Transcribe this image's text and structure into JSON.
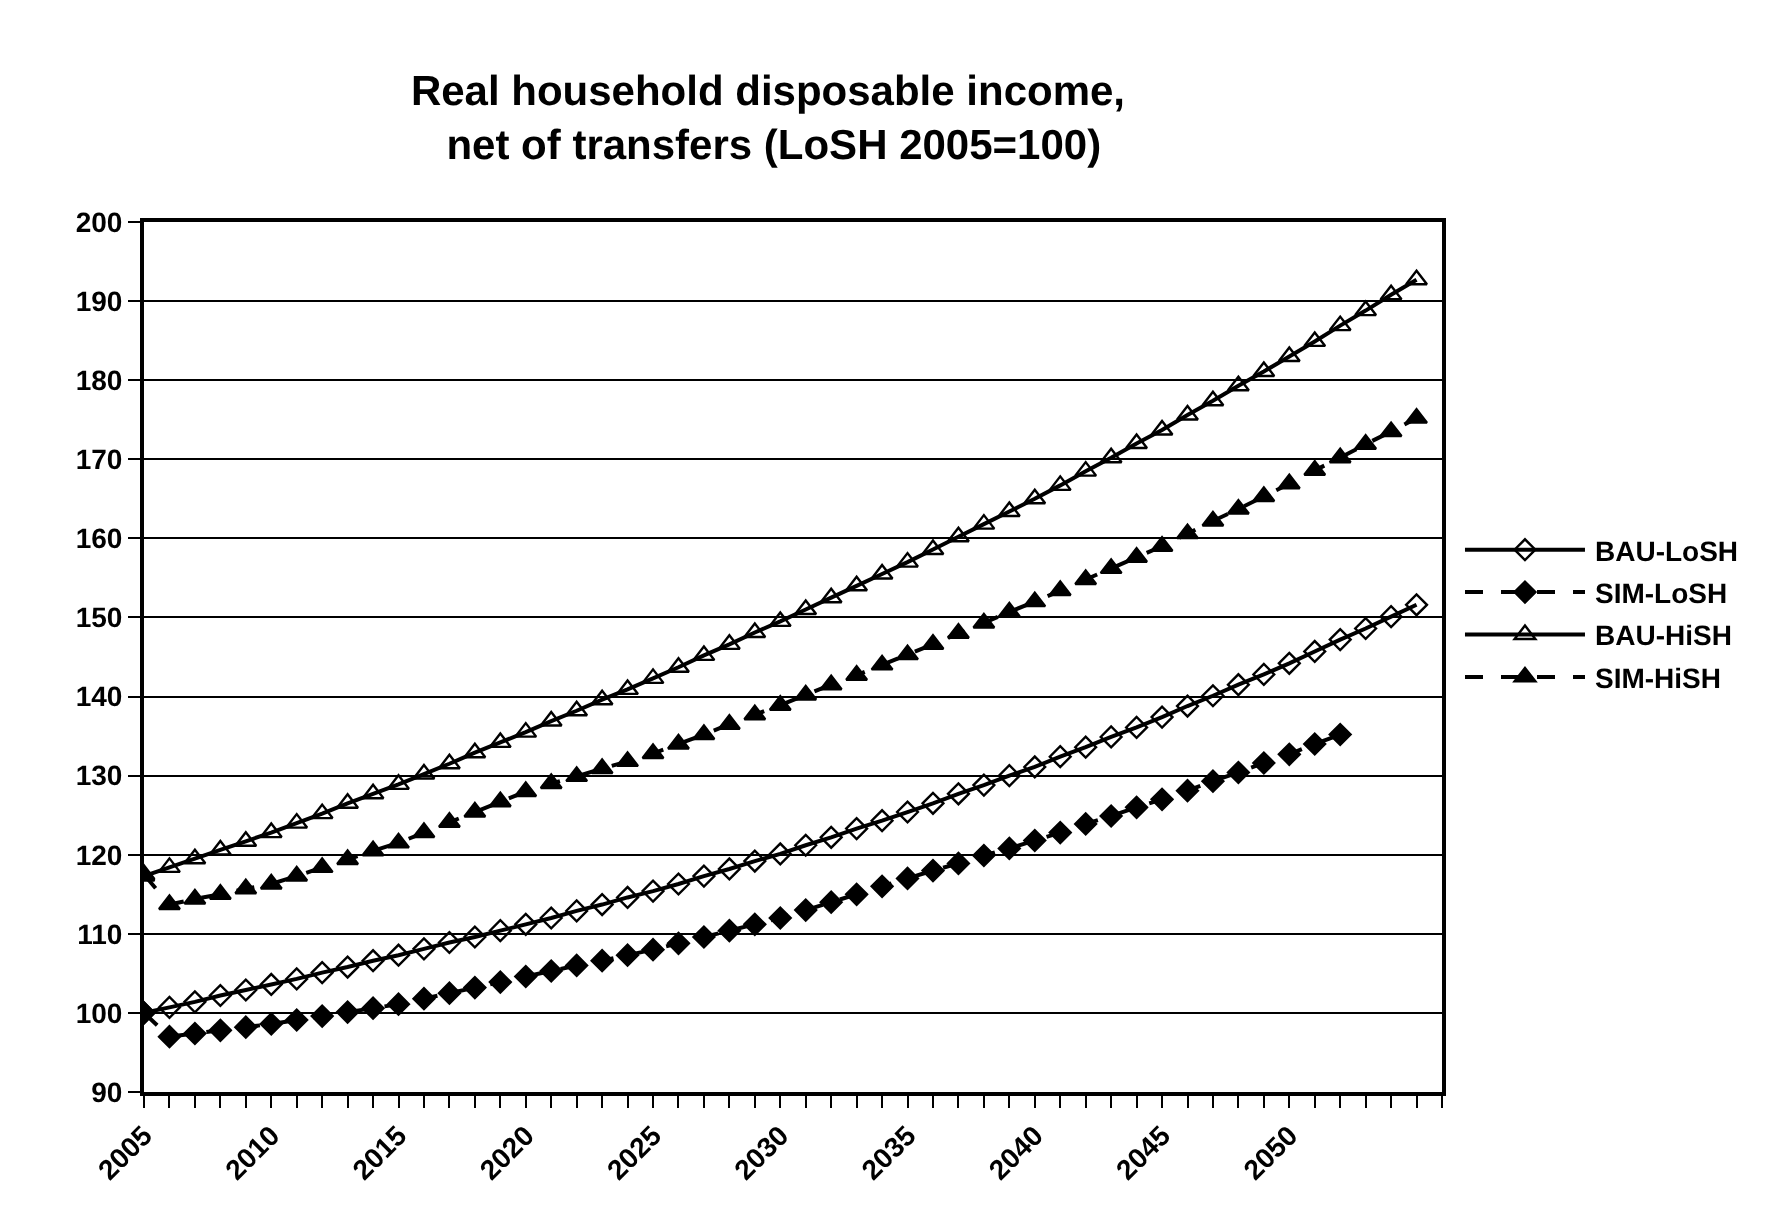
{
  "chart_data": {
    "type": "line",
    "title": "Real household disposable income,\n net of transfers (LoSH 2005=100)",
    "x": [
      2005,
      2006,
      2007,
      2008,
      2009,
      2010,
      2011,
      2012,
      2013,
      2014,
      2015,
      2016,
      2017,
      2018,
      2019,
      2020,
      2021,
      2022,
      2023,
      2024,
      2025,
      2026,
      2027,
      2028,
      2029,
      2030,
      2031,
      2032,
      2033,
      2034,
      2035,
      2036,
      2037,
      2038,
      2039,
      2040,
      2041,
      2042,
      2043,
      2044,
      2045,
      2046,
      2047,
      2048,
      2049,
      2050,
      2051,
      2052,
      2053,
      2054,
      2055
    ],
    "series": [
      {
        "name": "BAU-LoSH",
        "color": "#000000",
        "marker": "diamond",
        "line_style": "solid",
        "values": [
          100,
          100.7,
          101.4,
          102.2,
          102.9,
          103.6,
          104.3,
          105.1,
          105.8,
          106.6,
          107.3,
          108.1,
          108.9,
          109.6,
          110.4,
          111.2,
          112.0,
          112.9,
          113.7,
          114.6,
          115.4,
          116.3,
          117.3,
          118.2,
          119.2,
          120.1,
          121.2,
          122.2,
          123.3,
          124.3,
          125.4,
          126.5,
          127.7,
          128.8,
          130.0,
          131.1,
          132.4,
          133.6,
          134.9,
          136.1,
          137.4,
          138.8,
          140.1,
          141.5,
          142.8,
          144.2,
          145.7,
          147.2,
          148.6,
          150.1,
          151.6
        ]
      },
      {
        "name": "SIM-LoSH",
        "color": "#000000",
        "marker": "diamond",
        "line_style": "dashed",
        "values": [
          100,
          97.0,
          97.4,
          97.8,
          98.2,
          98.6,
          99.1,
          99.6,
          100.1,
          100.6,
          101.1,
          101.8,
          102.5,
          103.2,
          103.9,
          104.6,
          105.3,
          106.0,
          106.6,
          107.3,
          108.0,
          108.8,
          109.6,
          110.4,
          111.2,
          112.0,
          113.0,
          114.0,
          115.0,
          116.0,
          117.0,
          118.0,
          118.9,
          119.9,
          120.8,
          121.8,
          122.8,
          123.9,
          124.9,
          126.0,
          127.0,
          128.1,
          129.3,
          130.4,
          131.6,
          132.7,
          134.0,
          135.2,
          null,
          null,
          null
        ]
      },
      {
        "name": "BAU-HiSH",
        "color": "#000000",
        "marker": "triangle",
        "line_style": "solid",
        "values": [
          117.3,
          118.4,
          119.5,
          120.6,
          121.7,
          122.8,
          124.0,
          125.2,
          126.5,
          127.7,
          128.9,
          130.2,
          131.5,
          132.9,
          134.2,
          135.5,
          136.9,
          138.2,
          139.6,
          140.9,
          142.3,
          143.7,
          145.2,
          146.6,
          148.1,
          149.5,
          151.0,
          152.5,
          154.0,
          155.5,
          157.0,
          158.6,
          160.2,
          161.8,
          163.4,
          165.0,
          166.7,
          168.5,
          170.2,
          172.0,
          173.7,
          175.6,
          177.4,
          179.3,
          181.1,
          183.0,
          184.9,
          186.9,
          188.8,
          190.8,
          192.7
        ]
      },
      {
        "name": "SIM-HiSH",
        "color": "#000000",
        "marker": "triangle",
        "line_style": "dashed",
        "values": [
          117.5,
          113.7,
          114.4,
          115.0,
          115.7,
          116.3,
          117.3,
          118.4,
          119.4,
          120.5,
          121.5,
          122.8,
          124.1,
          125.4,
          126.7,
          128.0,
          129.0,
          129.9,
          130.9,
          131.8,
          132.8,
          134.0,
          135.2,
          136.5,
          137.7,
          138.9,
          140.2,
          141.5,
          142.7,
          144.0,
          145.3,
          146.6,
          148.0,
          149.3,
          150.7,
          152.0,
          153.4,
          154.8,
          156.2,
          157.6,
          159.0,
          160.6,
          162.2,
          163.7,
          165.3,
          166.9,
          168.6,
          170.2,
          171.9,
          173.5,
          175.2
        ]
      }
    ],
    "xlim": [
      2005,
      2056
    ],
    "xticks": [
      2005,
      {
        "value": 2006,
        "label": null
      },
      {
        "value": 2007,
        "label": null
      },
      {
        "value": 2008,
        "label": null
      },
      {
        "value": 2009,
        "label": null
      },
      2010,
      {
        "value": 2011,
        "label": null
      },
      {
        "value": 2012,
        "label": null
      },
      {
        "value": 2013,
        "label": null
      },
      {
        "value": 2014,
        "label": null
      },
      2015,
      {
        "value": 2016,
        "label": null
      },
      {
        "value": 2017,
        "label": null
      },
      {
        "value": 2018,
        "label": null
      },
      {
        "value": 2019,
        "label": null
      },
      2020,
      {
        "value": 2021,
        "label": null
      },
      {
        "value": 2022,
        "label": null
      },
      {
        "value": 2023,
        "label": null
      },
      {
        "value": 2024,
        "label": null
      },
      2025,
      {
        "value": 2026,
        "label": null
      },
      {
        "value": 2027,
        "label": null
      },
      {
        "value": 2028,
        "label": null
      },
      {
        "value": 2029,
        "label": null
      },
      2030,
      {
        "value": 2031,
        "label": null
      },
      {
        "value": 2032,
        "label": null
      },
      {
        "value": 2033,
        "label": null
      },
      {
        "value": 2034,
        "label": null
      },
      2035,
      {
        "value": 2036,
        "label": null
      },
      {
        "value": 2037,
        "label": null
      },
      {
        "value": 2038,
        "label": null
      },
      {
        "value": 2039,
        "label": null
      },
      2040,
      {
        "value": 2041,
        "label": null
      },
      {
        "value": 2042,
        "label": null
      },
      {
        "value": 2043,
        "label": null
      },
      {
        "value": 2044,
        "label": null
      },
      2045,
      {
        "value": 2046,
        "label": null
      },
      {
        "value": 2047,
        "label": null
      },
      {
        "value": 2048,
        "label": null
      },
      {
        "value": 2049,
        "label": null
      },
      2050,
      {
        "value": 2051,
        "label": null
      },
      {
        "value": 2052,
        "label": null
      },
      {
        "value": 2053,
        "label": null
      },
      {
        "value": 2054,
        "label": null
      },
      {
        "value": 2055,
        "label": null
      },
      {
        "value": 2056,
        "label": null
      }
    ],
    "ylim": [
      90,
      200
    ],
    "yticks": [
      90,
      100,
      110,
      120,
      130,
      140,
      150,
      160,
      170,
      180,
      190,
      200
    ],
    "grid": "y",
    "legend": "right"
  }
}
